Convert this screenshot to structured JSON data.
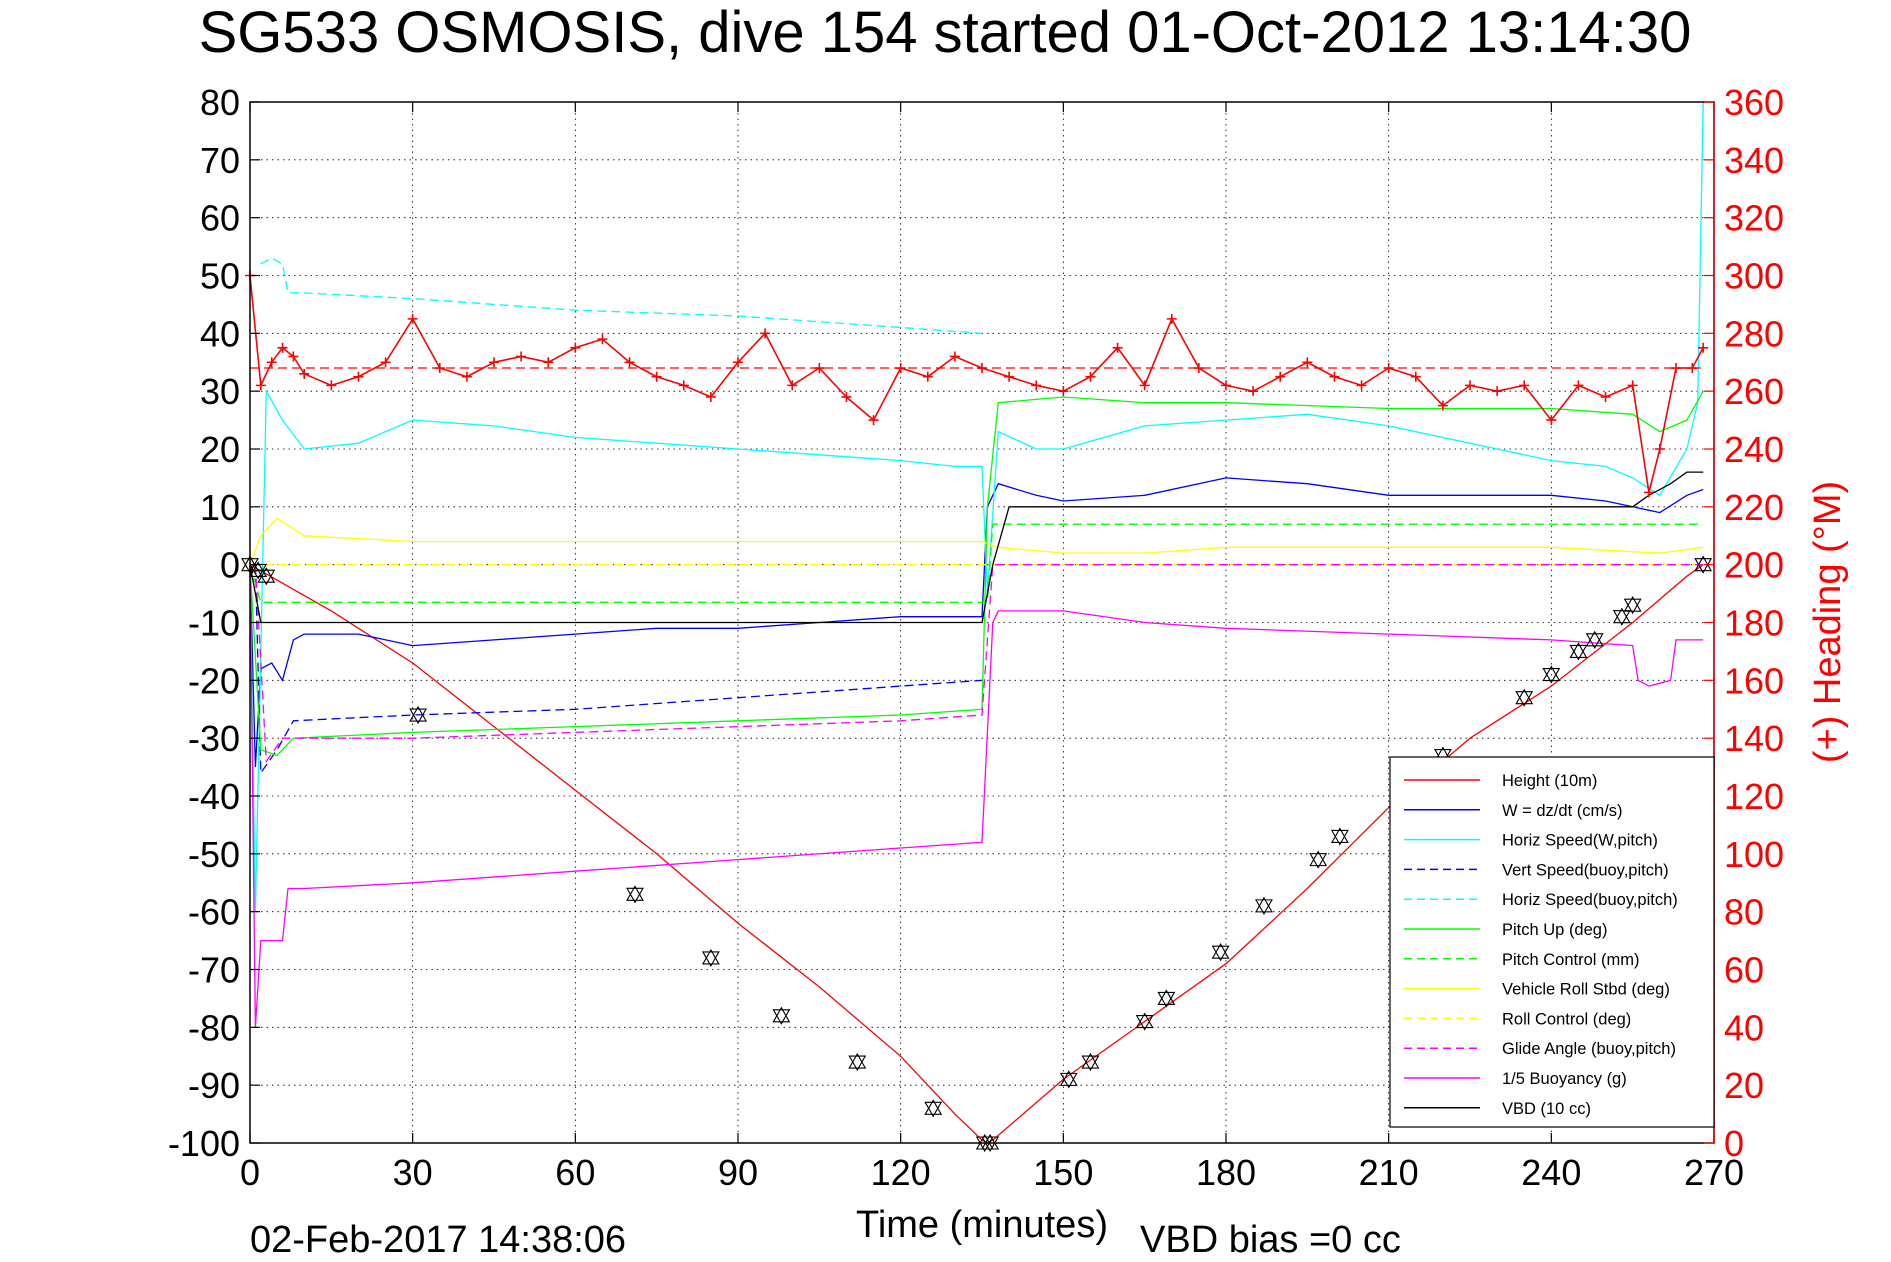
{
  "chart_data": {
    "type": "line",
    "title": "SG533 OSMOSIS, dive 154 started 01-Oct-2012 13:14:30",
    "xlabel": "Time (minutes)",
    "ylabel_right": "(+) Heading (°M)",
    "xlim": [
      0,
      270
    ],
    "ylim": [
      -100,
      80
    ],
    "ylim_right": [
      0,
      360
    ],
    "x_ticks": [
      "0",
      "30",
      "60",
      "90",
      "120",
      "150",
      "180",
      "210",
      "240",
      "270"
    ],
    "y_ticks": [
      "80",
      "70",
      "60",
      "50",
      "40",
      "30",
      "20",
      "10",
      "0",
      "-10",
      "-20",
      "-30",
      "-40",
      "-50",
      "-60",
      "-70",
      "-80",
      "-90",
      "-100"
    ],
    "y_right_ticks": [
      "360",
      "340",
      "320",
      "300",
      "280",
      "260",
      "240",
      "220",
      "200",
      "180",
      "160",
      "140",
      "120",
      "100",
      "80",
      "60",
      "40",
      "20",
      "0"
    ],
    "grid": true,
    "legend_position": "bottom-right",
    "footer_date": "02-Feb-2017 14:38:06",
    "footer_note": "VBD bias =0 cc",
    "legend": [
      {
        "label": "Height (10m)",
        "color": "#ff0000",
        "dash": "solid"
      },
      {
        "label": "W = dz/dt (cm/s)",
        "color": "#0000ff",
        "dash": "solid"
      },
      {
        "label": "Horiz Speed(W,pitch)",
        "color": "#00ffff",
        "dash": "solid"
      },
      {
        "label": "Vert Speed(buoy,pitch)",
        "color": "#0000ff",
        "dash": "dashed"
      },
      {
        "label": "Horiz Speed(buoy,pitch)",
        "color": "#00ffff",
        "dash": "dashed"
      },
      {
        "label": "Pitch Up (deg)",
        "color": "#00ff00",
        "dash": "solid"
      },
      {
        "label": "Pitch Control (mm)",
        "color": "#00ff00",
        "dash": "dashed"
      },
      {
        "label": "Vehicle Roll Stbd (deg)",
        "color": "#ffff00",
        "dash": "solid"
      },
      {
        "label": "Roll Control (deg)",
        "color": "#ffff00",
        "dash": "dashed"
      },
      {
        "label": "Glide Angle (buoy,pitch)",
        "color": "#ff00ff",
        "dash": "dashed"
      },
      {
        "label": "1/5 Buoyancy (g)",
        "color": "#ff00ff",
        "dash": "solid"
      },
      {
        "label": "VBD (10 cc)",
        "color": "#000000",
        "dash": "solid"
      }
    ],
    "series": [
      {
        "name": "Height (10m)",
        "axis": "left",
        "color": "#ff0000",
        "dash": "solid",
        "x": [
          0,
          15,
          30,
          45,
          60,
          75,
          90,
          105,
          120,
          130,
          135,
          136,
          137,
          150,
          165,
          180,
          195,
          210,
          225,
          240,
          255,
          265,
          268
        ],
        "y": [
          0,
          -8,
          -17,
          -28,
          -39,
          -50,
          -62,
          -73,
          -85,
          -95,
          -99.5,
          -100,
          -99.5,
          -89,
          -79,
          -69,
          -56,
          -42,
          -30,
          -21,
          -10,
          -2,
          0
        ]
      },
      {
        "name": "W = dz/dt (cm/s)",
        "axis": "left",
        "color": "#0000ff",
        "dash": "solid",
        "x": [
          0,
          1,
          2,
          4,
          6,
          8,
          10,
          20,
          30,
          45,
          60,
          75,
          90,
          105,
          120,
          130,
          135,
          136,
          138,
          145,
          150,
          165,
          180,
          195,
          210,
          225,
          240,
          250,
          255,
          260,
          265,
          268
        ],
        "y": [
          0,
          -35,
          -18,
          -17,
          -20,
          -13,
          -12,
          -12,
          -14,
          -13,
          -12,
          -11,
          -11,
          -10,
          -9,
          -9,
          -9,
          10,
          14,
          12,
          11,
          12,
          15,
          14,
          12,
          12,
          12,
          11,
          10,
          9,
          12,
          13
        ]
      },
      {
        "name": "Horiz Speed(W,pitch)",
        "axis": "left",
        "color": "#00ffff",
        "dash": "solid",
        "x": [
          0,
          1,
          3,
          6,
          10,
          20,
          30,
          45,
          60,
          75,
          90,
          105,
          120,
          130,
          135,
          136,
          138,
          145,
          150,
          165,
          180,
          195,
          210,
          225,
          240,
          250,
          255,
          260,
          265,
          267,
          268
        ],
        "y": [
          0,
          -60,
          30,
          25,
          20,
          21,
          25,
          24,
          22,
          21,
          20,
          19,
          18,
          17,
          17,
          -5,
          23,
          20,
          20,
          24,
          25,
          26,
          24,
          21,
          18,
          17,
          15,
          12,
          20,
          28,
          80
        ]
      },
      {
        "name": "Vert Speed(buoy,pitch)",
        "axis": "left",
        "color": "#0000ff",
        "dash": "dashed",
        "x": [
          1,
          2,
          5,
          8,
          30,
          60,
          90,
          120,
          135
        ],
        "y": [
          0,
          -36,
          -32,
          -27,
          -26,
          -25,
          -23,
          -21,
          -20
        ]
      },
      {
        "name": "Horiz Speed(buoy,pitch)",
        "axis": "left",
        "color": "#00ffff",
        "dash": "dashed",
        "x": [
          2,
          4,
          6,
          7,
          10,
          30,
          60,
          90,
          120,
          135
        ],
        "y": [
          52,
          53,
          52,
          47,
          47,
          46,
          44,
          43,
          41,
          40
        ]
      },
      {
        "name": "Pitch Up (deg)",
        "axis": "left",
        "color": "#00ff00",
        "dash": "solid",
        "x": [
          0,
          2,
          5,
          8,
          30,
          60,
          90,
          120,
          135,
          136,
          138,
          150,
          165,
          180,
          210,
          240,
          255,
          260,
          265,
          268
        ],
        "y": [
          0,
          -32,
          -33,
          -30,
          -29,
          -28,
          -27,
          -26,
          -25,
          10,
          28,
          29,
          28,
          28,
          27,
          27,
          26,
          23,
          25,
          30
        ]
      },
      {
        "name": "Pitch Control (mm)",
        "axis": "left",
        "color": "#00ff00",
        "dash": "dashed",
        "x": [
          0,
          2,
          136,
          137,
          268
        ],
        "y": [
          0,
          -6.5,
          -6.5,
          7,
          7
        ]
      },
      {
        "name": "Vehicle Roll Stbd (deg)",
        "axis": "left",
        "color": "#ffff00",
        "dash": "solid",
        "x": [
          0,
          2,
          5,
          10,
          30,
          60,
          90,
          120,
          135,
          138,
          150,
          165,
          180,
          210,
          240,
          260,
          268
        ],
        "y": [
          0,
          5,
          8,
          5,
          4,
          4,
          4,
          4,
          4,
          3,
          2,
          2,
          3,
          3,
          3,
          2,
          3
        ]
      },
      {
        "name": "Roll Control (deg)",
        "axis": "left",
        "color": "#ffff00",
        "dash": "dashed",
        "x": [
          0,
          268
        ],
        "y": [
          0,
          0
        ]
      },
      {
        "name": "Glide Angle (buoy,pitch)",
        "axis": "left",
        "color": "#ff00ff",
        "dash": "dashed",
        "x": [
          1,
          3,
          6,
          30,
          60,
          90,
          120,
          135,
          137,
          268
        ],
        "y": [
          0,
          -34,
          -30,
          -30,
          -29,
          -28,
          -27,
          -26,
          0,
          0
        ]
      },
      {
        "name": "1/5 Buoyancy (g)",
        "axis": "left",
        "color": "#ff00ff",
        "dash": "solid",
        "x": [
          0,
          1,
          2,
          3,
          6,
          7,
          10,
          30,
          60,
          90,
          120,
          135,
          137,
          138,
          150,
          165,
          180,
          210,
          240,
          255,
          256,
          258,
          262,
          263,
          266,
          268
        ],
        "y": [
          0,
          -80,
          -65,
          -65,
          -65,
          -56,
          -56,
          -55,
          -53,
          -51,
          -49,
          -48,
          -10,
          -8,
          -8,
          -10,
          -11,
          -12,
          -13,
          -14,
          -20,
          -21,
          -20,
          -13,
          -13,
          -13
        ]
      },
      {
        "name": "VBD (10 cc)",
        "axis": "left",
        "color": "#000000",
        "dash": "solid",
        "x": [
          0,
          2,
          3,
          135,
          137,
          140,
          255,
          258,
          262,
          265,
          268
        ],
        "y": [
          0,
          -10,
          -10,
          -10,
          0,
          10,
          10,
          12,
          14,
          16,
          16
        ]
      },
      {
        "name": "Heading",
        "axis": "right",
        "color": "#ff0000",
        "dash": "none",
        "marker": "+",
        "x": [
          0,
          2,
          4,
          6,
          8,
          10,
          15,
          20,
          25,
          30,
          35,
          40,
          45,
          50,
          55,
          60,
          65,
          70,
          75,
          80,
          85,
          90,
          95,
          100,
          105,
          110,
          115,
          120,
          125,
          130,
          135,
          140,
          145,
          150,
          155,
          160,
          165,
          170,
          175,
          180,
          185,
          190,
          195,
          200,
          205,
          210,
          215,
          220,
          225,
          230,
          235,
          240,
          245,
          250,
          255,
          258,
          260,
          263,
          266,
          268
        ],
        "y": [
          300,
          262,
          270,
          275,
          272,
          266,
          262,
          265,
          270,
          285,
          268,
          265,
          270,
          272,
          270,
          275,
          278,
          270,
          265,
          262,
          258,
          270,
          280,
          262,
          268,
          258,
          250,
          268,
          265,
          272,
          268,
          265,
          262,
          260,
          265,
          275,
          262,
          285,
          268,
          262,
          260,
          265,
          270,
          265,
          262,
          268,
          265,
          255,
          262,
          260,
          262,
          250,
          262,
          258,
          262,
          225,
          240,
          268,
          268,
          275
        ]
      },
      {
        "name": "Heading reference",
        "axis": "right",
        "color": "#ff0000",
        "dash": "dashed",
        "x": [
          0,
          268
        ],
        "y": [
          268,
          268
        ]
      }
    ],
    "markers": {
      "name": "VBD events",
      "color": "#000000",
      "axis": "left",
      "x": [
        0,
        1.5,
        3,
        31,
        71,
        85,
        98,
        112,
        126,
        135.5,
        136.5,
        151,
        155,
        165,
        169,
        179,
        187,
        197,
        201,
        220,
        235,
        240,
        245,
        248,
        253,
        255,
        268
      ],
      "y": [
        0,
        -1,
        -2,
        -26,
        -57,
        -68,
        -78,
        -86,
        -94,
        -100,
        -100,
        -89,
        -86,
        -79,
        -75,
        -67,
        -59,
        -51,
        -47,
        -33,
        -23,
        -19,
        -15,
        -13,
        -9,
        -7,
        0
      ]
    }
  }
}
